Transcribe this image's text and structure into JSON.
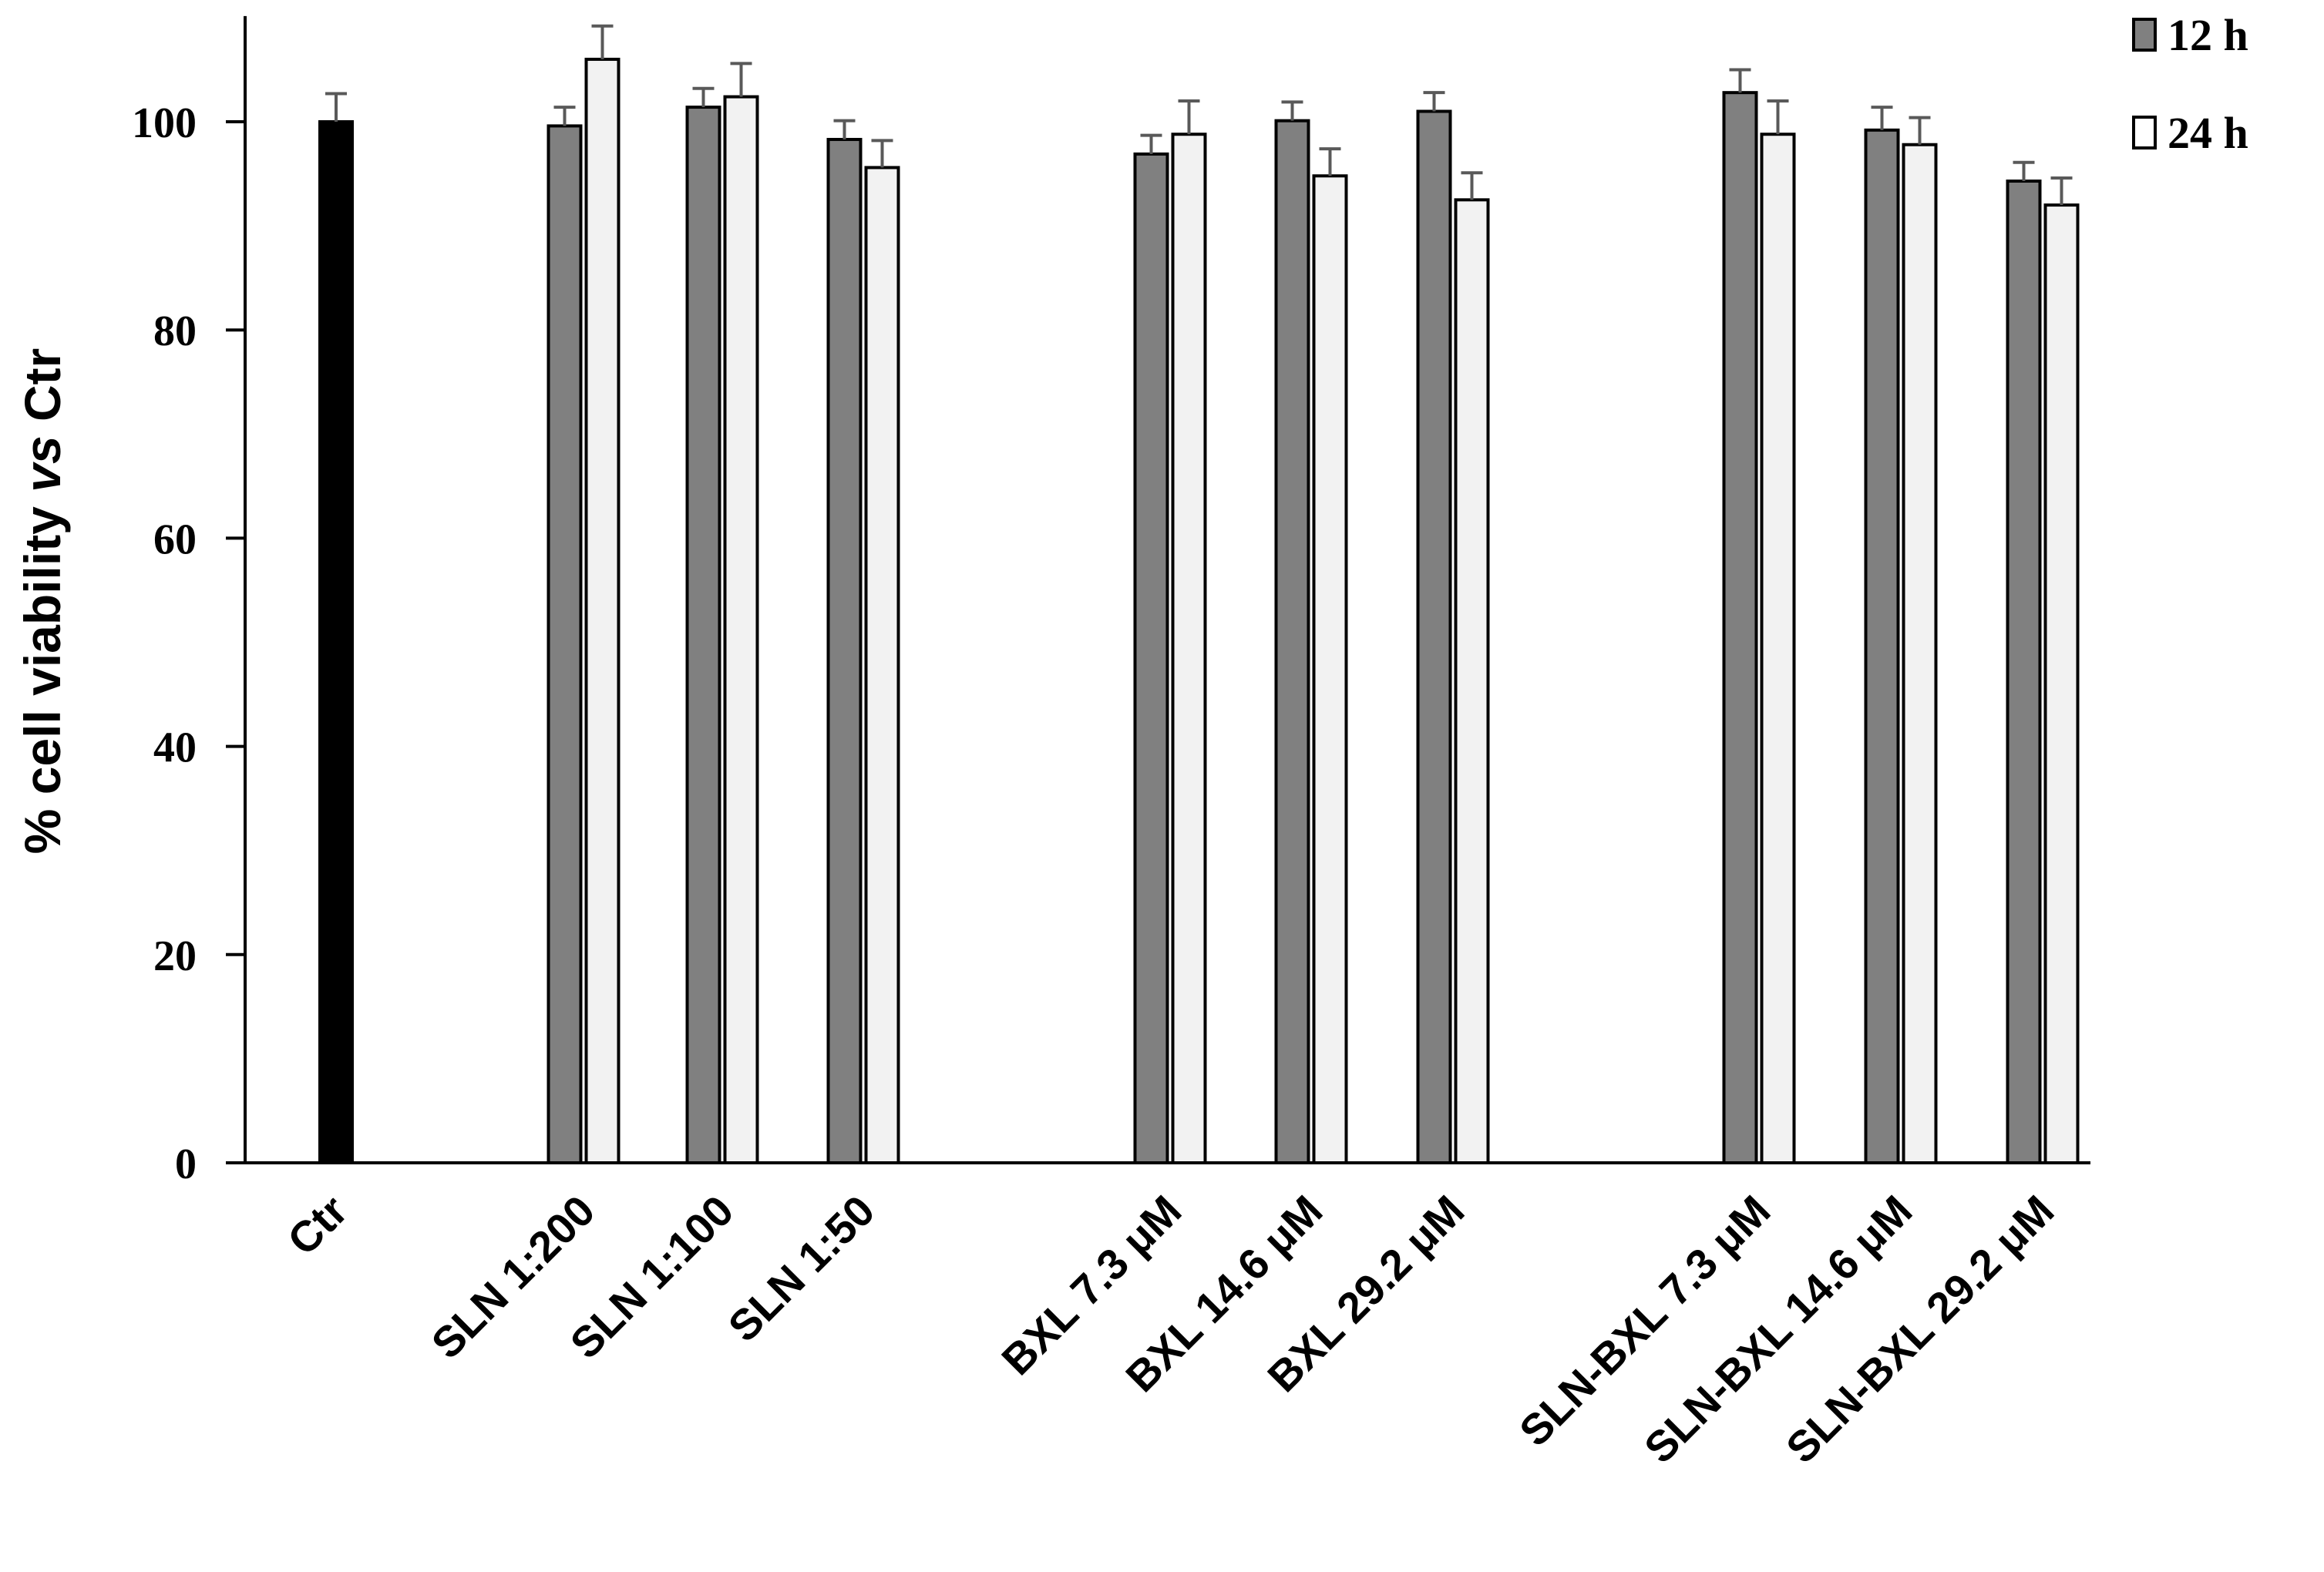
{
  "chart_data": {
    "type": "bar",
    "title": "",
    "xlabel": "",
    "ylabel": "% cell viability vs Ctr",
    "ylabel_parts": {
      "pre": "% cell viability ",
      "italic": "vs",
      "post": " Ctr"
    },
    "ylim": [
      0,
      110
    ],
    "yticks": [
      0,
      20,
      40,
      60,
      80,
      100
    ],
    "grid": false,
    "legend_position": "top-right",
    "categories": [
      "Ctr",
      "SLN 1:200",
      "SLN 1:100",
      "SLN 1:50",
      "BXL 7.3 μM",
      "BXL 14.6 μM",
      "BXL 29.2 μM",
      "SLN-BXL 7.3 μM",
      "SLN-BXL 14.6 μM",
      "SLN-BXL 29.2 μM"
    ],
    "control": {
      "category": "Ctr",
      "value": 100.0,
      "error": 2.7,
      "color": "#000000"
    },
    "series": [
      {
        "name": "12 h",
        "color": "#808080",
        "values": [
          null,
          99.6,
          101.4,
          98.3,
          96.9,
          100.1,
          101.0,
          102.8,
          99.2,
          94.3
        ],
        "errors": [
          null,
          1.8,
          1.8,
          1.8,
          1.8,
          1.8,
          1.8,
          2.2,
          2.2,
          1.8
        ]
      },
      {
        "name": "24 h",
        "color": "#f2f2f2",
        "values": [
          null,
          106.0,
          102.4,
          95.6,
          98.8,
          94.8,
          92.5,
          98.8,
          97.8,
          92.0
        ],
        "errors": [
          null,
          3.2,
          3.2,
          2.6,
          3.2,
          2.6,
          2.6,
          3.2,
          2.6,
          2.6
        ]
      }
    ]
  }
}
